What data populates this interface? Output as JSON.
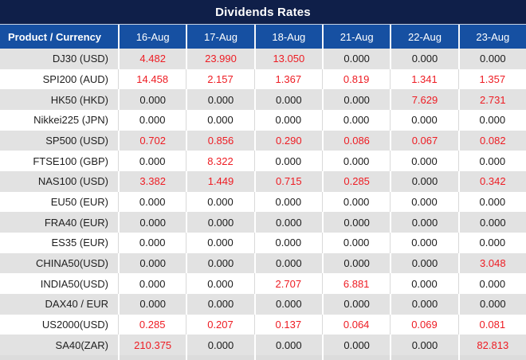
{
  "title": "Dividends Rates",
  "columns": [
    "Product / Currency",
    "16-Aug",
    "17-Aug",
    "18-Aug",
    "21-Aug",
    "22-Aug",
    "23-Aug"
  ],
  "rows": [
    {
      "product": "DJ30 (USD)",
      "values": [
        "4.482",
        "23.990",
        "13.050",
        "0.000",
        "0.000",
        "0.000"
      ]
    },
    {
      "product": "SPI200 (AUD)",
      "values": [
        "14.458",
        "2.157",
        "1.367",
        "0.819",
        "1.341",
        "1.357"
      ]
    },
    {
      "product": "HK50 (HKD)",
      "values": [
        "0.000",
        "0.000",
        "0.000",
        "0.000",
        "7.629",
        "2.731"
      ]
    },
    {
      "product": "Nikkei225 (JPN)",
      "values": [
        "0.000",
        "0.000",
        "0.000",
        "0.000",
        "0.000",
        "0.000"
      ]
    },
    {
      "product": "SP500 (USD)",
      "values": [
        "0.702",
        "0.856",
        "0.290",
        "0.086",
        "0.067",
        "0.082"
      ]
    },
    {
      "product": "FTSE100 (GBP)",
      "values": [
        "0.000",
        "8.322",
        "0.000",
        "0.000",
        "0.000",
        "0.000"
      ]
    },
    {
      "product": "NAS100 (USD)",
      "values": [
        "3.382",
        "1.449",
        "0.715",
        "0.285",
        "0.000",
        "0.342"
      ]
    },
    {
      "product": "EU50 (EUR)",
      "values": [
        "0.000",
        "0.000",
        "0.000",
        "0.000",
        "0.000",
        "0.000"
      ]
    },
    {
      "product": "FRA40 (EUR)",
      "values": [
        "0.000",
        "0.000",
        "0.000",
        "0.000",
        "0.000",
        "0.000"
      ]
    },
    {
      "product": "ES35 (EUR)",
      "values": [
        "0.000",
        "0.000",
        "0.000",
        "0.000",
        "0.000",
        "0.000"
      ]
    },
    {
      "product": "CHINA50(USD)",
      "values": [
        "0.000",
        "0.000",
        "0.000",
        "0.000",
        "0.000",
        "3.048"
      ]
    },
    {
      "product": "INDIA50(USD)",
      "values": [
        "0.000",
        "0.000",
        "2.707",
        "6.881",
        "0.000",
        "0.000"
      ]
    },
    {
      "product": "DAX40 / EUR",
      "values": [
        "0.000",
        "0.000",
        "0.000",
        "0.000",
        "0.000",
        "0.000"
      ]
    },
    {
      "product": "US2000(USD)",
      "values": [
        "0.285",
        "0.207",
        "0.137",
        "0.064",
        "0.069",
        "0.081"
      ]
    },
    {
      "product": "SA40(ZAR)",
      "values": [
        "210.375",
        "0.000",
        "0.000",
        "0.000",
        "0.000",
        "82.813"
      ]
    }
  ],
  "colors": {
    "navy": "#0f1f49",
    "blue": "#1650a2",
    "red": "#ee1c23",
    "grayRow": "#e2e2e2",
    "whiteRow": "#ffffff",
    "textDark": "#1b1b1b",
    "headerText": "#ffffff"
  }
}
